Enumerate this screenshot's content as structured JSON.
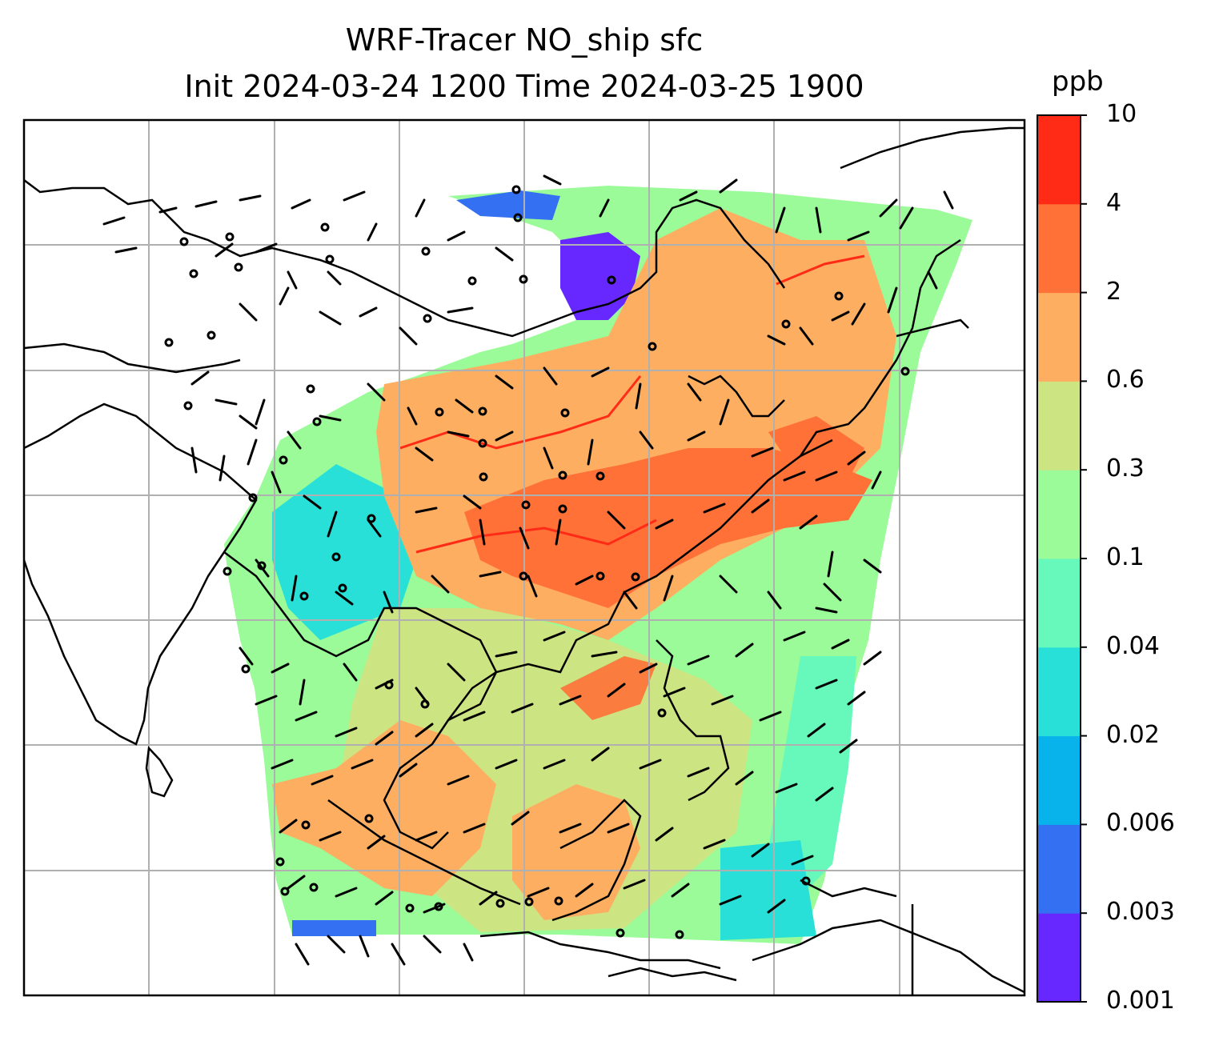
{
  "title": {
    "line1": "WRF-Tracer NO_ship sfc",
    "line2": "Init 2024-03-24 1200 Time 2024-03-25 1900"
  },
  "colorbar": {
    "unit": "ppb",
    "tick_labels": [
      "0.001",
      "0.003",
      "0.006",
      "0.02",
      "0.04",
      "0.1",
      "0.3",
      "0.6",
      "2",
      "4",
      "10"
    ],
    "colors": [
      "#6628ff",
      "#3470f2",
      "#08b2ea",
      "#28e0d8",
      "#66f9bb",
      "#9afb98",
      "#cde483",
      "#fdae61",
      "#ff7137",
      "#ff2b17"
    ]
  },
  "map": {
    "overlays": [
      "coastlines",
      "gridlines",
      "wind-barbs",
      "calm-circles"
    ]
  }
}
